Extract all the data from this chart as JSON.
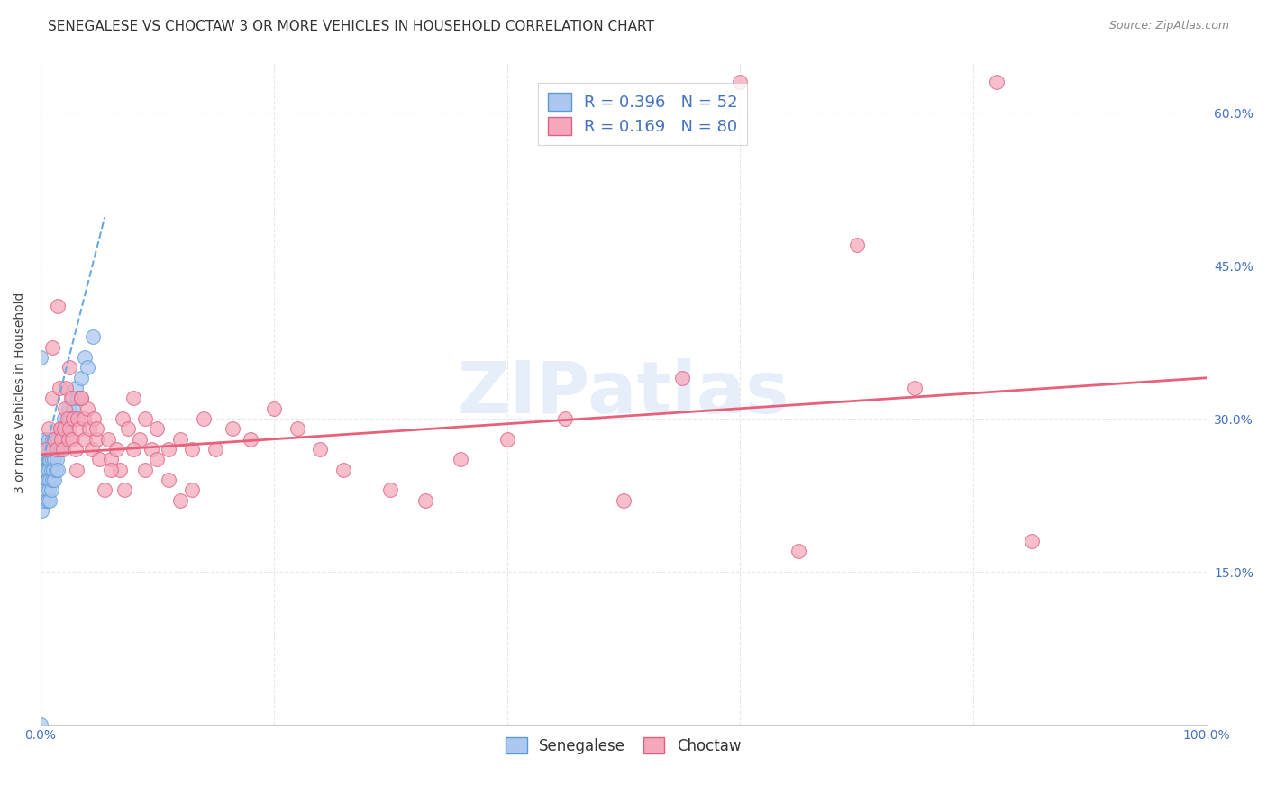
{
  "title": "SENEGALESE VS CHOCTAW 3 OR MORE VEHICLES IN HOUSEHOLD CORRELATION CHART",
  "source": "Source: ZipAtlas.com",
  "ylabel": "3 or more Vehicles in Household",
  "xlim": [
    0.0,
    1.0
  ],
  "ylim": [
    0.0,
    0.65
  ],
  "xticks": [
    0.0,
    0.2,
    0.4,
    0.6,
    0.8,
    1.0
  ],
  "yticks": [
    0.0,
    0.15,
    0.3,
    0.45,
    0.6
  ],
  "senegalese_color": "#adc8f0",
  "senegalese_edge": "#5b9bd5",
  "choctaw_color": "#f5a8bc",
  "choctaw_edge": "#e06080",
  "trendline_blue": "#6aaae0",
  "trendline_pink": "#e8607a",
  "R_senegalese": 0.396,
  "N_senegalese": 52,
  "R_choctaw": 0.169,
  "N_choctaw": 80,
  "watermark": "ZIPatlas",
  "background_color": "#ffffff",
  "grid_color": "#e8e8e8",
  "title_fontsize": 11,
  "tick_fontsize": 10,
  "ylabel_fontsize": 10,
  "senegalese_x": [
    0.0,
    0.001,
    0.002,
    0.003,
    0.003,
    0.004,
    0.004,
    0.005,
    0.005,
    0.005,
    0.006,
    0.006,
    0.006,
    0.007,
    0.007,
    0.007,
    0.007,
    0.008,
    0.008,
    0.008,
    0.009,
    0.009,
    0.009,
    0.01,
    0.01,
    0.01,
    0.011,
    0.011,
    0.012,
    0.012,
    0.013,
    0.013,
    0.014,
    0.015,
    0.015,
    0.016,
    0.017,
    0.018,
    0.019,
    0.02,
    0.022,
    0.024,
    0.025,
    0.027,
    0.028,
    0.03,
    0.032,
    0.035,
    0.038,
    0.04,
    0.045,
    0.0
  ],
  "senegalese_y": [
    0.0,
    0.21,
    0.24,
    0.22,
    0.25,
    0.26,
    0.28,
    0.27,
    0.25,
    0.23,
    0.22,
    0.24,
    0.27,
    0.23,
    0.25,
    0.26,
    0.28,
    0.24,
    0.26,
    0.22,
    0.25,
    0.27,
    0.23,
    0.24,
    0.26,
    0.28,
    0.25,
    0.27,
    0.26,
    0.24,
    0.27,
    0.25,
    0.26,
    0.28,
    0.25,
    0.27,
    0.29,
    0.27,
    0.28,
    0.3,
    0.29,
    0.31,
    0.3,
    0.32,
    0.31,
    0.33,
    0.32,
    0.34,
    0.36,
    0.35,
    0.38,
    0.36
  ],
  "choctaw_x": [
    0.005,
    0.007,
    0.01,
    0.012,
    0.014,
    0.015,
    0.016,
    0.017,
    0.018,
    0.019,
    0.02,
    0.021,
    0.022,
    0.023,
    0.024,
    0.025,
    0.026,
    0.027,
    0.028,
    0.03,
    0.031,
    0.032,
    0.033,
    0.035,
    0.037,
    0.038,
    0.04,
    0.042,
    0.044,
    0.046,
    0.048,
    0.05,
    0.055,
    0.058,
    0.06,
    0.065,
    0.068,
    0.07,
    0.075,
    0.08,
    0.085,
    0.09,
    0.095,
    0.1,
    0.11,
    0.12,
    0.13,
    0.14,
    0.15,
    0.165,
    0.18,
    0.2,
    0.22,
    0.24,
    0.26,
    0.3,
    0.33,
    0.36,
    0.4,
    0.45,
    0.5,
    0.55,
    0.6,
    0.65,
    0.7,
    0.75,
    0.82,
    0.85,
    0.01,
    0.025,
    0.035,
    0.048,
    0.06,
    0.072,
    0.08,
    0.09,
    0.1,
    0.11,
    0.12,
    0.13
  ],
  "choctaw_y": [
    0.27,
    0.29,
    0.32,
    0.28,
    0.27,
    0.41,
    0.33,
    0.29,
    0.28,
    0.27,
    0.29,
    0.31,
    0.33,
    0.3,
    0.28,
    0.29,
    0.32,
    0.28,
    0.3,
    0.27,
    0.25,
    0.3,
    0.29,
    0.32,
    0.3,
    0.28,
    0.31,
    0.29,
    0.27,
    0.3,
    0.28,
    0.26,
    0.23,
    0.28,
    0.26,
    0.27,
    0.25,
    0.3,
    0.29,
    0.32,
    0.28,
    0.3,
    0.27,
    0.29,
    0.27,
    0.28,
    0.27,
    0.3,
    0.27,
    0.29,
    0.28,
    0.31,
    0.29,
    0.27,
    0.25,
    0.23,
    0.22,
    0.26,
    0.28,
    0.3,
    0.22,
    0.34,
    0.63,
    0.17,
    0.47,
    0.33,
    0.63,
    0.18,
    0.37,
    0.35,
    0.32,
    0.29,
    0.25,
    0.23,
    0.27,
    0.25,
    0.26,
    0.24,
    0.22,
    0.23
  ]
}
